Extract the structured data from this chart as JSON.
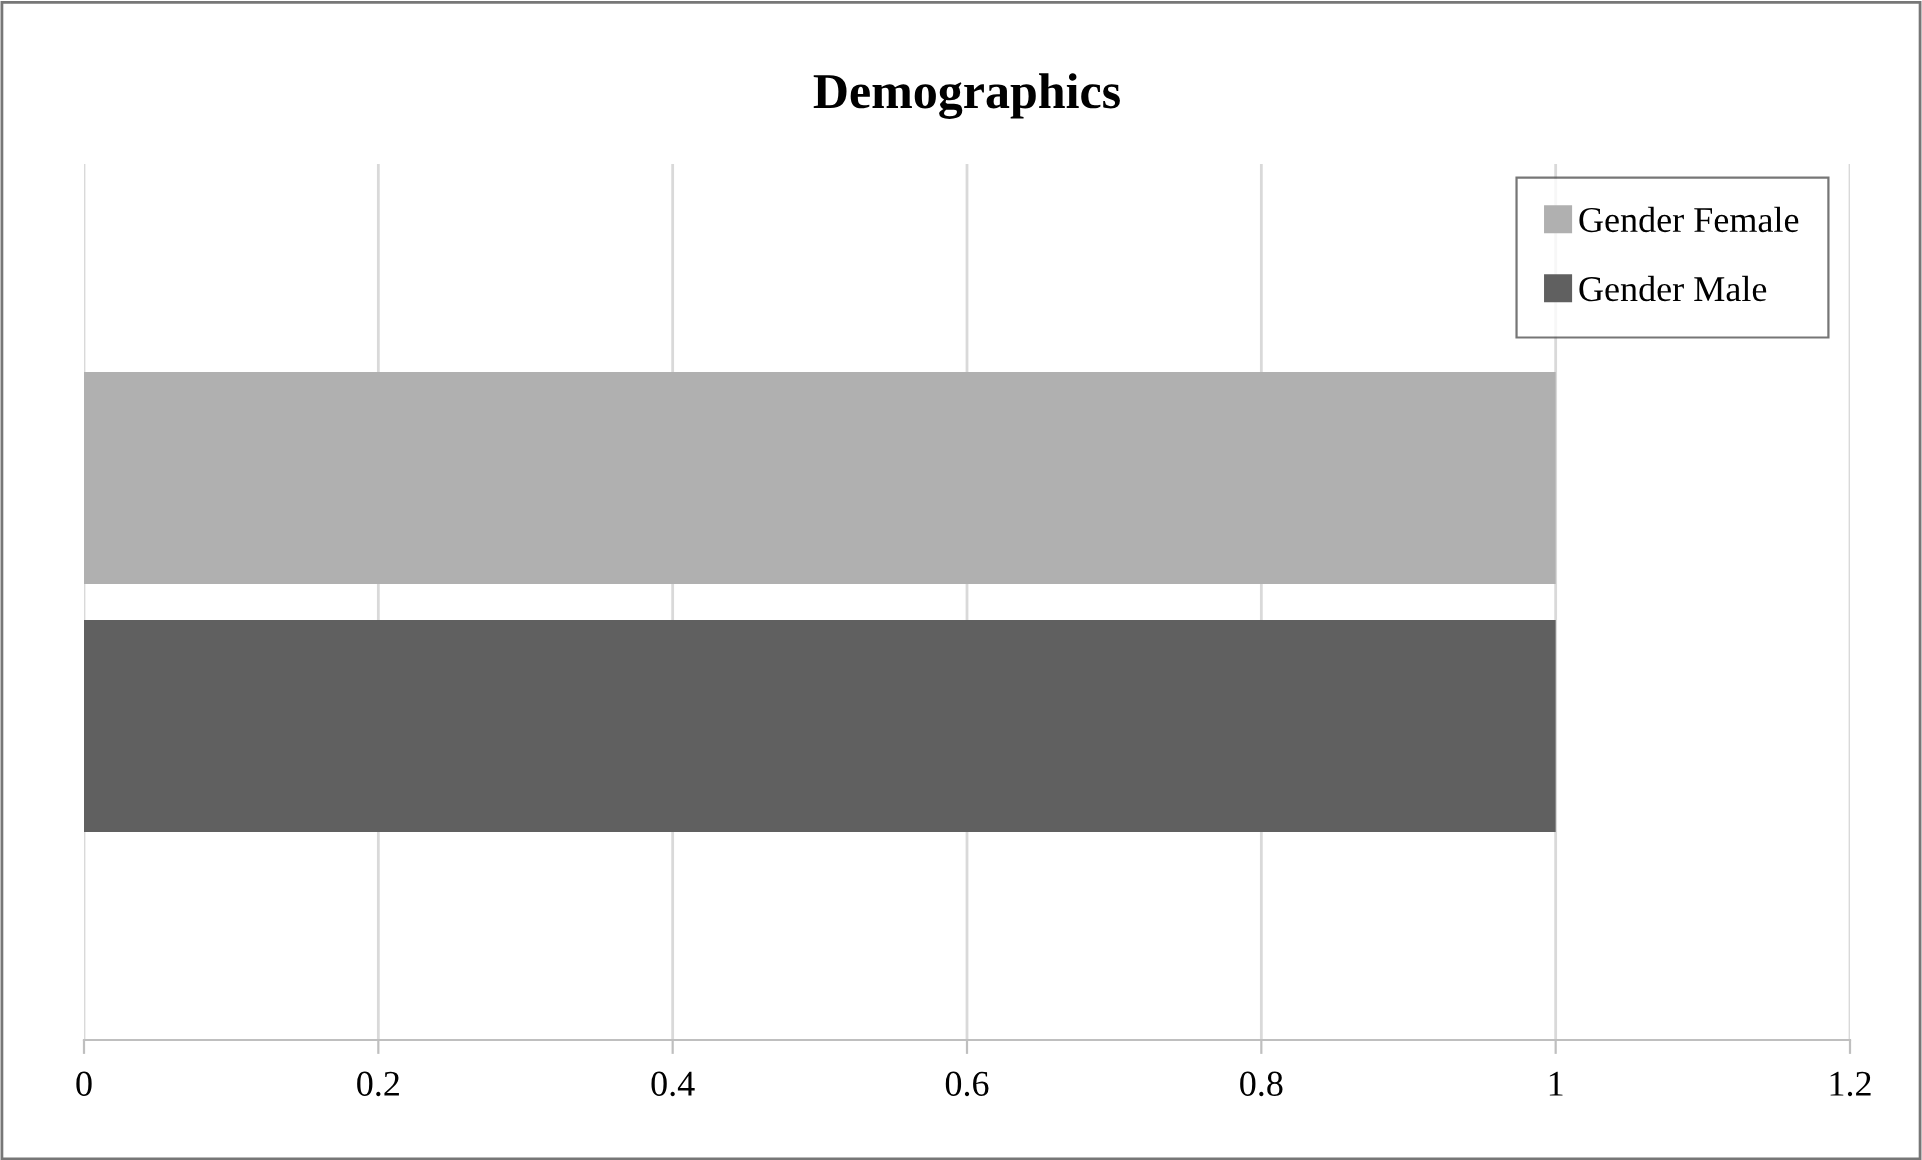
{
  "chart_data": {
    "type": "bar",
    "title": "Demographics",
    "orientation": "horizontal",
    "categories": [
      null
    ],
    "series": [
      {
        "name": "Gender Female",
        "color": "#b0b0b0",
        "values": [
          1
        ]
      },
      {
        "name": "Gender Male",
        "color": "#606060",
        "values": [
          1
        ]
      }
    ],
    "xlim": [
      0,
      1.2
    ],
    "xticks": [
      0,
      0.2,
      0.4,
      0.6,
      0.8,
      1,
      1.2
    ],
    "grid": "x",
    "legend": "top right"
  }
}
